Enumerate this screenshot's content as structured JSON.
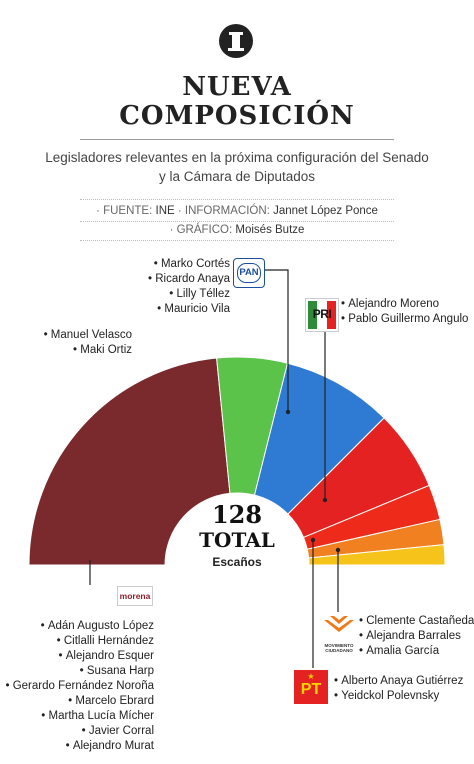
{
  "header": {
    "title_line1": "NUEVA",
    "title_line2": "COMPOSICIÓN",
    "subtitle_line1": "Legisladores relevantes en la próxima configuración del Senado",
    "subtitle_line2": "y la Cámara de Diputados"
  },
  "credits": {
    "fuente_label": "· FUENTE:",
    "fuente_value": "INE",
    "info_label": "· INFORMACIÓN:",
    "info_value": "Jannet López Ponce",
    "grafico_label": "· GRÁFICO:",
    "grafico_value": "Moisés Butze"
  },
  "parties": {
    "pan": {
      "logo_text": "PAN",
      "members": [
        "Marko Cortés",
        "Ricardo Anaya",
        "Lilly Téllez",
        "Mauricio Vila"
      ]
    },
    "pri": {
      "logo_text": "PRI",
      "members": [
        "Alejandro Moreno",
        "Pablo Guillermo Angulo"
      ]
    },
    "pvem": {
      "members": [
        "Manuel Velasco",
        "Maki Ortiz"
      ]
    },
    "morena": {
      "logo_text": "morena",
      "members": [
        "Adán Augusto López",
        "Citlalli Hernández",
        "Alejandro Esquer",
        "Susana Harp",
        "Gerardo Fernández Noroña",
        "Marcelo Ebrard",
        "Martha Lucía Mícher",
        "Javier Corral",
        "Alejandro Murat"
      ]
    },
    "mc": {
      "logo_text": "MOVIMIENTO CIUDADANO",
      "members": [
        "Clemente Castañeda",
        "Alejandra Barrales",
        "Amalia García"
      ]
    },
    "pt": {
      "logo_text": "PT",
      "members": [
        "Alberto Anaya Gutiérrez",
        "Yeidckol Polevnsky"
      ]
    }
  },
  "total": {
    "number": "128",
    "word": "TOTAL",
    "unit": "Escaños"
  },
  "chart_data": {
    "type": "pie",
    "subtype": "half-donut (hemicycle)",
    "unit": "Escaños",
    "total": 128,
    "series": [
      {
        "party": "morena",
        "value": 60,
        "color": "#7a2a2c"
      },
      {
        "party": "pvem",
        "value": 14,
        "color": "#5cc34a"
      },
      {
        "party": "pan",
        "value": 22,
        "color": "#2f7bd4"
      },
      {
        "party": "pri",
        "value": 16,
        "color": "#e52222"
      },
      {
        "party": "pri",
        "value": 7,
        "color": "#ee2a1a"
      },
      {
        "party": "mc",
        "value": 5,
        "color": "#f08020"
      },
      {
        "party": "pt",
        "value": 4,
        "color": "#f5c31a"
      }
    ]
  }
}
